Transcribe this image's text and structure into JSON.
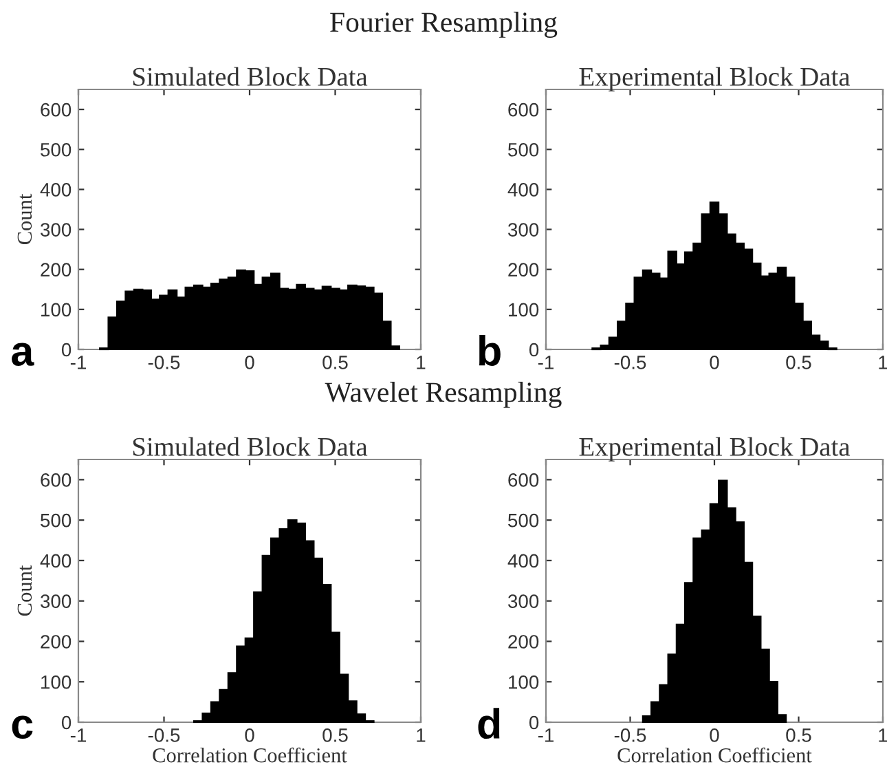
{
  "chart_data": [
    {
      "type": "histogram",
      "title": "Simulated Block Data",
      "ylabel": "Count",
      "annotations": [
        "Fourier Resampling",
        "a"
      ],
      "color": "#000000",
      "xlim": [
        -1,
        1
      ],
      "ylim": [
        0,
        650
      ],
      "xticks": [
        -1,
        -0.5,
        0,
        0.5,
        1
      ],
      "yticks": [
        0,
        100,
        200,
        300,
        400,
        500,
        600
      ],
      "grid": false,
      "bins": [
        -0.875,
        -0.825,
        -0.775,
        -0.725,
        -0.675,
        -0.625,
        -0.575,
        -0.525,
        -0.475,
        -0.425,
        -0.375,
        -0.325,
        -0.275,
        -0.225,
        -0.175,
        -0.125,
        -0.075,
        -0.025,
        0.025,
        0.075,
        0.125,
        0.175,
        0.225,
        0.275,
        0.325,
        0.375,
        0.425,
        0.475,
        0.525,
        0.575,
        0.625,
        0.675,
        0.725,
        0.775,
        0.825,
        0.875
      ],
      "values": [
        3,
        80,
        120,
        145,
        150,
        148,
        125,
        135,
        148,
        130,
        155,
        160,
        155,
        165,
        175,
        180,
        198,
        196,
        162,
        180,
        190,
        152,
        150,
        162,
        152,
        148,
        157,
        152,
        148,
        160,
        158,
        155,
        140,
        70,
        8
      ]
    },
    {
      "type": "histogram",
      "title": "Experimental Block Data",
      "annotations": [
        "b"
      ],
      "color": "#000000",
      "xlim": [
        -1,
        1
      ],
      "ylim": [
        0,
        650
      ],
      "xticks": [
        -1,
        -0.5,
        0,
        0.5,
        1
      ],
      "yticks": [
        0,
        100,
        200,
        300,
        400,
        500,
        600
      ],
      "grid": false,
      "bins": [
        -0.725,
        -0.675,
        -0.625,
        -0.575,
        -0.525,
        -0.475,
        -0.425,
        -0.375,
        -0.325,
        -0.275,
        -0.225,
        -0.175,
        -0.125,
        -0.075,
        -0.025,
        0.025,
        0.075,
        0.125,
        0.175,
        0.225,
        0.275,
        0.325,
        0.375,
        0.425,
        0.475,
        0.525,
        0.575,
        0.625,
        0.675,
        0.725
      ],
      "values": [
        3,
        10,
        30,
        70,
        115,
        180,
        198,
        190,
        178,
        245,
        213,
        243,
        265,
        338,
        368,
        338,
        288,
        265,
        250,
        215,
        183,
        190,
        205,
        180,
        115,
        70,
        35,
        20,
        3
      ]
    },
    {
      "type": "histogram",
      "title": "Simulated Block Data",
      "ylabel": "Count",
      "xlabel": "Correlation Coefficient",
      "annotations": [
        "Wavelet Resampling",
        "c"
      ],
      "color": "#000000",
      "xlim": [
        -1,
        1
      ],
      "ylim": [
        0,
        650
      ],
      "xticks": [
        -1,
        -0.5,
        0,
        0.5,
        1
      ],
      "yticks": [
        0,
        100,
        200,
        300,
        400,
        500,
        600
      ],
      "grid": false,
      "bins": [
        -0.325,
        -0.275,
        -0.225,
        -0.175,
        -0.125,
        -0.075,
        -0.025,
        0.025,
        0.075,
        0.125,
        0.175,
        0.225,
        0.275,
        0.325,
        0.375,
        0.425,
        0.475,
        0.525,
        0.575,
        0.625,
        0.675,
        0.725
      ],
      "values": [
        3,
        22,
        50,
        80,
        122,
        188,
        208,
        322,
        412,
        455,
        478,
        500,
        492,
        448,
        405,
        340,
        222,
        118,
        52,
        20,
        3
      ]
    },
    {
      "type": "histogram",
      "title": "Experimental Block Data",
      "xlabel": "Correlation Coefficient",
      "annotations": [
        "d"
      ],
      "color": "#000000",
      "xlim": [
        -1,
        1
      ],
      "ylim": [
        0,
        650
      ],
      "xticks": [
        -1,
        -0.5,
        0,
        0.5,
        1
      ],
      "yticks": [
        0,
        100,
        200,
        300,
        400,
        500,
        600
      ],
      "grid": false,
      "bins": [
        -0.425,
        -0.375,
        -0.325,
        -0.275,
        -0.225,
        -0.175,
        -0.125,
        -0.075,
        -0.025,
        0.025,
        0.075,
        0.125,
        0.175,
        0.225,
        0.275,
        0.325,
        0.375,
        0.425
      ],
      "values": [
        15,
        50,
        92,
        168,
        242,
        345,
        455,
        475,
        540,
        598,
        530,
        495,
        395,
        262,
        180,
        100,
        18
      ]
    }
  ]
}
